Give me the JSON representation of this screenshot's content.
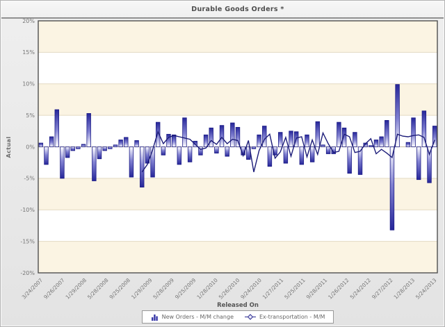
{
  "title": "Durable Goods Orders *",
  "chart_data": {
    "type": "bar",
    "title": "Durable Goods Orders *",
    "xlabel": "Released On",
    "ylabel": "Actual",
    "ylim": [
      -20,
      20
    ],
    "ytick_step": 5,
    "grid": true,
    "legend_position": "bottom",
    "y_tick_labels": [
      "20%",
      "15%",
      "10%",
      "5%",
      "0%",
      "-5%",
      "-10%",
      "-15%",
      "-20%"
    ],
    "x_tick_labels": [
      "3/24/2007",
      "9/26/2007",
      "1/29/2008",
      "5/28/2008",
      "9/25/2008",
      "1/29/2009",
      "5/28/2009",
      "9/25/2009",
      "1/28/2010",
      "5/26/2010",
      "9/24/2010",
      "1/27/2011",
      "5/25/2011",
      "9/28/2011",
      "1/26/2012",
      "5/24/2012",
      "9/27/2012",
      "1/28/2013",
      "5/24/2013"
    ],
    "x_count": 75,
    "series": [
      {
        "name": "New Orders - M/M change",
        "type": "bar",
        "values": [
          0.6,
          -2.8,
          1.6,
          5.9,
          -5.0,
          -1.7,
          -0.6,
          -0.3,
          0.4,
          5.3,
          -5.4,
          -1.9,
          -0.6,
          -0.3,
          0.3,
          1.1,
          1.5,
          -4.8,
          1.0,
          -6.4,
          -2.6,
          -4.8,
          3.9,
          -1.3,
          2.0,
          1.9,
          -2.8,
          4.6,
          -2.4,
          0.9,
          -1.3,
          1.9,
          3.0,
          -1.0,
          3.4,
          -1.5,
          3.8,
          3.1,
          -1.3,
          -2.0,
          -0.3,
          1.9,
          3.3,
          -3.1,
          -1.3,
          2.3,
          -2.6,
          2.5,
          2.4,
          -2.8,
          1.9,
          -2.4,
          4.0,
          0.3,
          -1.1,
          -1.1,
          3.9,
          3.0,
          -4.2,
          2.3,
          -4.4,
          0.6,
          0.2,
          1.1,
          1.6,
          4.2,
          -13.2,
          9.9,
          0.0,
          0.7,
          4.6,
          -5.2,
          5.7,
          -5.7,
          3.3
        ]
      },
      {
        "name": "Ex-transportation - M/M",
        "type": "line",
        "start_index": 19,
        "values": [
          -4.0,
          -2.8,
          -0.5,
          2.4,
          0.5,
          1.5,
          1.8,
          1.6,
          1.4,
          1.2,
          0.4,
          -0.4,
          -0.2,
          1.0,
          0.4,
          1.5,
          0.5,
          1.2,
          1.0,
          -1.4,
          1.0,
          -4.0,
          -0.6,
          1.2,
          2.0,
          -1.8,
          -0.8,
          1.5,
          -1.5,
          1.4,
          1.6,
          -1.6,
          1.1,
          -1.2,
          2.2,
          0.5,
          -0.9,
          -0.7,
          2.0,
          1.6,
          -0.9,
          -0.7,
          0.5,
          1.3,
          -1.1,
          -0.4,
          -1.0,
          -1.7,
          2.0,
          1.7,
          1.6,
          1.8,
          1.9,
          1.5,
          -1.2,
          1.1
        ]
      }
    ]
  },
  "legend": {
    "items": [
      {
        "label": "New Orders - M/M change",
        "icon": "mini-bar-chart-icon"
      },
      {
        "label": "Ex-transportation - M/M",
        "icon": "diamond-line-marker-icon"
      }
    ]
  },
  "colors": {
    "bar_top": "#26269a",
    "bar_mid": "#8282d2",
    "bar_base": "#ffffff",
    "bar_border": "#1d1d86",
    "line": "#1b1b78",
    "band_cream": "#fbf4e3",
    "band_white": "#ffffff",
    "grid_line": "#e3d9c2",
    "zero_line": "#c8bda2",
    "plot_border": "#4f4f4f",
    "tick_text": "#757575",
    "title_text": "#4d4d4d",
    "frame_bg": "#e9e9e9",
    "legend_bg": "#ffffff",
    "legend_border": "#999999",
    "legend_text": "#666666"
  }
}
